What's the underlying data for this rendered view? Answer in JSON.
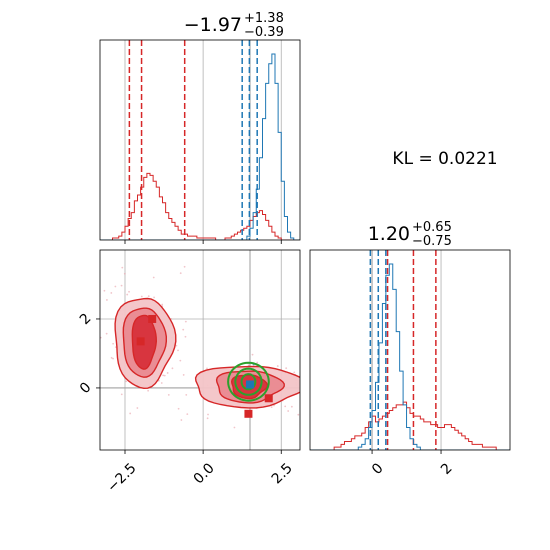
{
  "chart_data": {
    "type": "corner-plot",
    "parameters": [
      {
        "title": {
          "main": "−1.97",
          "plus": "+1.38",
          "minus": "−0.39"
        },
        "xlim": [
          -3.3,
          3.1
        ],
        "ticks": [
          {
            "v": -2.5,
            "label": "−2.5"
          },
          {
            "v": 0.0,
            "label": "0.0"
          },
          {
            "v": 2.5,
            "label": "2.5"
          }
        ]
      },
      {
        "title": {
          "main": "1.20",
          "plus": "+0.65",
          "minus": "−0.75"
        },
        "xlim": [
          -1.8,
          4.0
        ],
        "ticks": [
          {
            "v": 0,
            "label": "0"
          },
          {
            "v": 2,
            "label": "2"
          }
        ]
      }
    ],
    "annotation": "KL = 0.0221",
    "series": [
      {
        "color": "#d62728",
        "p1_quantiles": [
          -2.36,
          -1.97,
          -0.59
        ],
        "p2_quantiles": [
          0.45,
          1.2,
          1.85
        ],
        "p1_hist": {
          "lo": -3.3,
          "hi": 3.1,
          "counts": [
            0,
            0,
            0,
            0,
            1,
            1,
            2,
            4,
            7,
            11,
            14,
            20,
            23,
            27,
            32,
            34,
            33,
            30,
            27,
            22,
            19,
            14,
            11,
            9,
            7,
            5,
            3,
            3,
            2,
            2,
            2,
            1,
            1,
            1,
            1,
            1,
            1,
            0,
            0,
            0,
            1,
            1,
            2,
            3,
            4,
            5,
            6,
            7,
            10,
            12,
            14,
            15,
            13,
            10,
            7,
            4,
            2,
            1,
            0,
            0,
            0,
            0,
            0,
            0
          ]
        },
        "p2_hist": {
          "lo": -1.8,
          "hi": 4.0,
          "counts": [
            0,
            0,
            0,
            0,
            0,
            0,
            0,
            1,
            1,
            2,
            3,
            3,
            4,
            5,
            5,
            6,
            8,
            10,
            12,
            10,
            11,
            12,
            13,
            14,
            15,
            16,
            16,
            17,
            15,
            13,
            12,
            12,
            11,
            10,
            10,
            9,
            9,
            8,
            8,
            9,
            9,
            8,
            7,
            6,
            5,
            4,
            3,
            2,
            2,
            2,
            1,
            1,
            1,
            1,
            0,
            0,
            0,
            0
          ]
        }
      },
      {
        "color": "#1f77b4",
        "p1_quantiles": [
          1.25,
          1.48,
          1.73
        ],
        "p2_quantiles": [
          -0.05,
          0.18,
          0.4
        ],
        "p1_hist": {
          "lo": -3.3,
          "hi": 3.1,
          "counts": [
            0,
            0,
            0,
            0,
            0,
            0,
            0,
            0,
            0,
            0,
            0,
            0,
            0,
            0,
            0,
            0,
            0,
            0,
            0,
            0,
            0,
            0,
            0,
            0,
            0,
            0,
            0,
            0,
            0,
            0,
            0,
            0,
            0,
            0,
            0,
            0,
            0,
            0,
            0,
            0,
            0,
            0,
            0,
            0,
            0,
            0,
            0,
            2,
            6,
            14,
            26,
            42,
            62,
            80,
            90,
            95,
            80,
            55,
            30,
            12,
            4,
            1,
            0,
            0
          ]
        },
        "p2_hist": {
          "lo": -1.8,
          "hi": 4.0,
          "counts": [
            0,
            0,
            0,
            0,
            0,
            0,
            0,
            0,
            0,
            0,
            0,
            0,
            0,
            0,
            1,
            2,
            4,
            8,
            14,
            24,
            38,
            52,
            62,
            66,
            57,
            42,
            28,
            16,
            8,
            4,
            2,
            1,
            0,
            0,
            0,
            0,
            0,
            0,
            0,
            0,
            0,
            0,
            0,
            0,
            0,
            0,
            0,
            0,
            0,
            0,
            0,
            0,
            0,
            0,
            0,
            0,
            0,
            0
          ]
        }
      }
    ],
    "contours": [
      {
        "color": "#d62728",
        "cx": -1.9,
        "cy": 1.35,
        "levels": [
          [
            0.95,
            1.3,
            0.78
          ],
          [
            0.68,
            1.0,
            0.62
          ],
          [
            0.38,
            0.78,
            0.55
          ]
        ]
      },
      {
        "color": "#d62728",
        "cx": 1.45,
        "cy": 0.05,
        "levels": [
          [
            1.75,
            0.6,
            0.82
          ],
          [
            1.05,
            0.46,
            0.9
          ],
          [
            0.55,
            0.34,
            0.95
          ]
        ]
      },
      {
        "color": "#2ca02c",
        "cx": 1.45,
        "cy": 0.18,
        "levels": [
          [
            0.65,
            0.55,
            0
          ],
          [
            0.42,
            0.38,
            0
          ],
          [
            0.22,
            0.22,
            0
          ]
        ]
      }
    ],
    "points": [
      {
        "color": "#d62728",
        "x": -2.0,
        "y": 1.35
      },
      {
        "color": "#d62728",
        "x": -1.63,
        "y": 2.0
      },
      {
        "color": "#d62728",
        "x": 1.45,
        "y": -0.75
      },
      {
        "color": "#d62728",
        "x": 2.1,
        "y": -0.3
      },
      {
        "color": "#1f77b4",
        "x": 1.5,
        "y": 0.1
      }
    ],
    "truth_lines": {
      "x": 1.5,
      "y": 0.0
    },
    "lower_y": {
      "lim": [
        -1.8,
        4.0
      ],
      "ticks": [
        {
          "v": 0,
          "label": "0"
        },
        {
          "v": 2,
          "label": "2"
        }
      ]
    }
  }
}
